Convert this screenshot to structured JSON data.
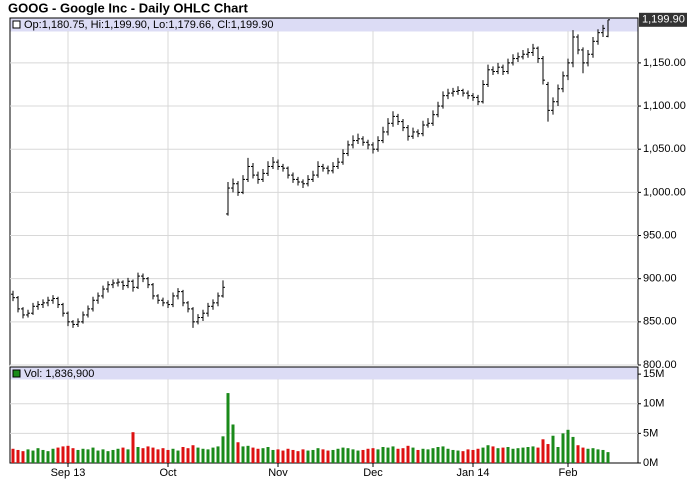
{
  "chart_data": {
    "type": "ohlc",
    "title": "GOOG - Google Inc - Daily OHLC Chart",
    "price_header": "Op:1,180.75, Hi:1,199.90, Lo:1,179.66, Cl:1,199.90",
    "last_price_label": "1,199.90",
    "volume_header": "Vol: 1,836,900",
    "xlim": [
      -0.6,
      125
    ],
    "xticks": [
      {
        "value": 11,
        "label": "Sep 13"
      },
      {
        "value": 31,
        "label": "Oct"
      },
      {
        "value": 53,
        "label": "Nov"
      },
      {
        "value": 72,
        "label": "Dec"
      },
      {
        "value": 92,
        "label": "Jan 14"
      },
      {
        "value": 111,
        "label": "Feb"
      }
    ],
    "ylim": [
      800,
      1202
    ],
    "yticks": [
      {
        "value": 800,
        "label": "800.00"
      },
      {
        "value": 850,
        "label": "850.00"
      },
      {
        "value": 900,
        "label": "900.00"
      },
      {
        "value": 950,
        "label": "950.00"
      },
      {
        "value": 1000,
        "label": "1,000.00"
      },
      {
        "value": 1050,
        "label": "1,050.00"
      },
      {
        "value": 1100,
        "label": "1,100.00"
      },
      {
        "value": 1150,
        "label": "1,150.00"
      }
    ],
    "volume_ylim": [
      0,
      16.2
    ],
    "volume_yticks": [
      {
        "value": 0,
        "label": "0M"
      },
      {
        "value": 5,
        "label": "5M"
      },
      {
        "value": 10,
        "label": "10M"
      },
      {
        "value": 15,
        "label": "15M"
      }
    ],
    "grid": true,
    "bar_color": "#000000",
    "up_color": "#1a8a1a",
    "down_color": "#dd1111",
    "ohlc": [
      [
        882,
        886,
        874,
        878
      ],
      [
        878,
        880,
        861,
        865
      ],
      [
        865,
        867,
        854,
        858
      ],
      [
        858,
        864,
        855,
        860
      ],
      [
        860,
        872,
        858,
        868
      ],
      [
        868,
        874,
        864,
        870
      ],
      [
        870,
        876,
        866,
        872
      ],
      [
        872,
        879,
        868,
        875
      ],
      [
        875,
        881,
        871,
        877
      ],
      [
        877,
        879,
        866,
        870
      ],
      [
        870,
        872,
        856,
        860
      ],
      [
        860,
        862,
        845,
        850
      ],
      [
        850,
        852,
        843,
        847
      ],
      [
        847,
        854,
        844,
        850
      ],
      [
        850,
        862,
        848,
        858
      ],
      [
        858,
        869,
        855,
        865
      ],
      [
        865,
        879,
        862,
        875
      ],
      [
        875,
        884,
        871,
        880
      ],
      [
        880,
        892,
        877,
        888
      ],
      [
        888,
        897,
        884,
        893
      ],
      [
        893,
        899,
        889,
        895
      ],
      [
        895,
        900,
        891,
        896
      ],
      [
        896,
        898,
        887,
        892
      ],
      [
        892,
        901,
        889,
        897
      ],
      [
        897,
        899,
        885,
        890
      ],
      [
        890,
        907,
        888,
        903
      ],
      [
        903,
        906,
        896,
        900
      ],
      [
        900,
        902,
        889,
        893
      ],
      [
        893,
        895,
        876,
        880
      ],
      [
        880,
        882,
        871,
        875
      ],
      [
        875,
        878,
        868,
        872
      ],
      [
        872,
        875,
        866,
        870
      ],
      [
        870,
        884,
        867,
        880
      ],
      [
        880,
        889,
        876,
        885
      ],
      [
        885,
        887,
        868,
        872
      ],
      [
        872,
        874,
        861,
        865
      ],
      [
        865,
        867,
        843,
        850
      ],
      [
        850,
        859,
        847,
        855
      ],
      [
        855,
        864,
        851,
        860
      ],
      [
        860,
        872,
        856,
        868
      ],
      [
        868,
        876,
        864,
        872
      ],
      [
        872,
        884,
        868,
        880
      ],
      [
        880,
        898,
        878,
        890
      ],
      [
        975,
        1012,
        973,
        1005
      ],
      [
        1005,
        1016,
        1000,
        1010
      ],
      [
        1010,
        1013,
        996,
        1000
      ],
      [
        1000,
        1020,
        998,
        1015
      ],
      [
        1015,
        1040,
        1012,
        1030
      ],
      [
        1030,
        1034,
        1016,
        1020
      ],
      [
        1020,
        1024,
        1010,
        1015
      ],
      [
        1015,
        1027,
        1012,
        1022
      ],
      [
        1022,
        1036,
        1019,
        1030
      ],
      [
        1030,
        1041,
        1027,
        1035
      ],
      [
        1035,
        1038,
        1026,
        1030
      ],
      [
        1030,
        1033,
        1024,
        1028
      ],
      [
        1028,
        1030,
        1016,
        1020
      ],
      [
        1020,
        1023,
        1011,
        1015
      ],
      [
        1015,
        1018,
        1008,
        1012
      ],
      [
        1012,
        1015,
        1005,
        1010
      ],
      [
        1010,
        1020,
        1007,
        1015
      ],
      [
        1015,
        1025,
        1012,
        1020
      ],
      [
        1020,
        1036,
        1017,
        1030
      ],
      [
        1030,
        1033,
        1024,
        1028
      ],
      [
        1028,
        1031,
        1021,
        1025
      ],
      [
        1025,
        1035,
        1022,
        1030
      ],
      [
        1030,
        1040,
        1027,
        1035
      ],
      [
        1035,
        1050,
        1032,
        1045
      ],
      [
        1045,
        1060,
        1042,
        1055
      ],
      [
        1055,
        1066,
        1051,
        1060
      ],
      [
        1060,
        1068,
        1056,
        1062
      ],
      [
        1062,
        1065,
        1054,
        1058
      ],
      [
        1058,
        1061,
        1050,
        1055
      ],
      [
        1055,
        1058,
        1045,
        1050
      ],
      [
        1050,
        1065,
        1047,
        1060
      ],
      [
        1060,
        1076,
        1057,
        1070
      ],
      [
        1070,
        1086,
        1066,
        1080
      ],
      [
        1080,
        1094,
        1076,
        1088
      ],
      [
        1088,
        1091,
        1078,
        1082
      ],
      [
        1082,
        1085,
        1071,
        1075
      ],
      [
        1075,
        1078,
        1060,
        1065
      ],
      [
        1065,
        1075,
        1062,
        1070
      ],
      [
        1070,
        1073,
        1064,
        1068
      ],
      [
        1068,
        1083,
        1065,
        1078
      ],
      [
        1078,
        1086,
        1075,
        1080
      ],
      [
        1080,
        1095,
        1077,
        1090
      ],
      [
        1090,
        1105,
        1087,
        1100
      ],
      [
        1100,
        1117,
        1097,
        1112
      ],
      [
        1112,
        1120,
        1108,
        1115
      ],
      [
        1115,
        1121,
        1111,
        1117
      ],
      [
        1117,
        1123,
        1113,
        1118
      ],
      [
        1118,
        1120,
        1111,
        1115
      ],
      [
        1115,
        1118,
        1108,
        1112
      ],
      [
        1112,
        1115,
        1106,
        1110
      ],
      [
        1110,
        1113,
        1101,
        1105
      ],
      [
        1105,
        1130,
        1103,
        1125
      ],
      [
        1125,
        1148,
        1122,
        1142
      ],
      [
        1142,
        1146,
        1136,
        1140
      ],
      [
        1140,
        1150,
        1137,
        1145
      ],
      [
        1145,
        1148,
        1136,
        1140
      ],
      [
        1140,
        1155,
        1137,
        1150
      ],
      [
        1150,
        1160,
        1147,
        1155
      ],
      [
        1155,
        1162,
        1151,
        1157
      ],
      [
        1157,
        1165,
        1154,
        1160
      ],
      [
        1160,
        1167,
        1156,
        1162
      ],
      [
        1162,
        1172,
        1158,
        1167
      ],
      [
        1167,
        1169,
        1150,
        1155
      ],
      [
        1155,
        1158,
        1125,
        1130
      ],
      [
        1125,
        1128,
        1082,
        1095
      ],
      [
        1095,
        1110,
        1090,
        1105
      ],
      [
        1105,
        1125,
        1100,
        1120
      ],
      [
        1120,
        1140,
        1116,
        1135
      ],
      [
        1135,
        1155,
        1130,
        1150
      ],
      [
        1150,
        1188,
        1145,
        1180
      ],
      [
        1180,
        1183,
        1160,
        1165
      ],
      [
        1165,
        1168,
        1138,
        1150
      ],
      [
        1150,
        1165,
        1146,
        1160
      ],
      [
        1160,
        1180,
        1156,
        1175
      ],
      [
        1175,
        1189,
        1171,
        1185
      ],
      [
        1185,
        1194,
        1180,
        1190
      ],
      [
        1180.75,
        1199.9,
        1179.66,
        1199.9
      ]
    ],
    "volume": [
      2.4,
      2.2,
      2.0,
      2.3,
      2.1,
      2.5,
      2.2,
      2.0,
      2.4,
      2.6,
      2.8,
      2.9,
      2.5,
      2.2,
      2.4,
      2.3,
      2.6,
      2.1,
      2.3,
      2.0,
      2.2,
      2.4,
      2.6,
      2.3,
      5.2,
      2.7,
      2.5,
      2.8,
      2.6,
      2.3,
      2.5,
      2.2,
      2.4,
      2.1,
      2.7,
      2.5,
      3.0,
      2.6,
      2.4,
      2.3,
      2.6,
      2.8,
      4.5,
      11.8,
      6.5,
      3.5,
      2.8,
      2.9,
      2.6,
      2.4,
      2.5,
      2.7,
      2.2,
      2.3,
      2.1,
      2.4,
      2.2,
      2.0,
      2.3,
      2.1,
      2.2,
      2.5,
      2.3,
      2.1,
      2.2,
      2.4,
      2.6,
      2.5,
      2.3,
      2.1,
      2.2,
      2.4,
      2.5,
      2.3,
      2.7,
      2.6,
      2.8,
      2.4,
      2.5,
      2.9,
      2.6,
      2.2,
      2.4,
      2.3,
      2.5,
      2.7,
      2.8,
      2.4,
      2.2,
      2.1,
      2.0,
      2.3,
      2.2,
      2.4,
      2.6,
      3.0,
      2.8,
      2.5,
      2.6,
      2.7,
      2.4,
      2.5,
      2.6,
      2.7,
      2.8,
      2.6,
      4.0,
      3.2,
      4.6,
      2.7,
      5.0,
      5.6,
      4.4,
      3.0,
      2.6,
      2.4,
      2.5,
      2.3,
      2.2,
      1.8369
    ]
  }
}
